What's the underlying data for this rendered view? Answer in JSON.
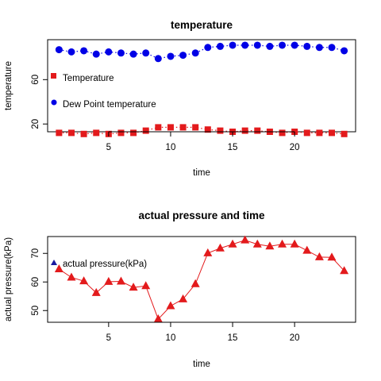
{
  "chart_data": [
    {
      "type": "line",
      "title": "temperature",
      "xlabel": "time",
      "ylabel": "temperature",
      "x": [
        1,
        2,
        3,
        4,
        5,
        6,
        7,
        8,
        9,
        10,
        11,
        12,
        13,
        14,
        15,
        16,
        17,
        18,
        19,
        20,
        21,
        22,
        23,
        24
      ],
      "xlim": [
        0.08,
        24.92
      ],
      "ylim": [
        13,
        96
      ],
      "xticks": [
        "5",
        "10",
        "15",
        "20"
      ],
      "yticks": [
        "20",
        "60"
      ],
      "series": [
        {
          "name": "Temperature",
          "color": "#e31a1c",
          "marker": "square",
          "values": [
            12,
            12,
            11,
            12,
            11,
            12,
            12,
            14,
            17,
            17,
            17,
            17,
            15,
            14,
            13,
            14,
            14,
            13,
            12,
            13,
            12,
            12,
            12,
            11
          ]
        },
        {
          "name": "Dew Point temperature",
          "color": "#0000e6",
          "marker": "circle",
          "values": [
            87,
            85,
            86,
            83,
            85,
            84,
            83,
            84,
            79,
            81,
            82,
            84,
            89,
            90,
            91,
            91,
            91,
            90,
            91,
            91,
            90,
            89,
            89,
            86
          ]
        }
      ],
      "legend": "left"
    },
    {
      "type": "line",
      "title": "actual pressure and time",
      "xlabel": "time",
      "ylabel": "actual pressure(kPa)",
      "x": [
        1,
        2,
        3,
        4,
        5,
        6,
        7,
        8,
        9,
        10,
        11,
        12,
        13,
        14,
        15,
        16,
        17,
        18,
        19,
        20,
        21,
        22,
        23,
        24
      ],
      "xlim": [
        0.08,
        24.92
      ],
      "ylim": [
        45.9,
        75.9
      ],
      "xticks": [
        "5",
        "10",
        "15",
        "20"
      ],
      "yticks": [
        "50",
        "60",
        "70"
      ],
      "series": [
        {
          "name": "actual pressure(kPa)",
          "color": "#e31a1c",
          "marker": "triangle",
          "values": [
            64.5,
            61.6,
            60.3,
            56.2,
            60.1,
            60.2,
            58.1,
            58.6,
            47.0,
            51.6,
            54.0,
            59.3,
            70.1,
            71.8,
            73.2,
            74.6,
            73.2,
            72.5,
            73.2,
            73.2,
            71.0,
            68.7,
            68.6,
            63.9
          ]
        }
      ],
      "legend": "top-left"
    }
  ]
}
